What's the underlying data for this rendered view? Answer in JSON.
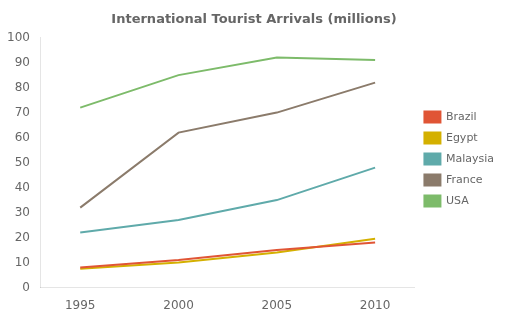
{
  "chart_data": {
    "type": "line",
    "title": "International Tourist Arrivals (millions)",
    "x": [
      1995,
      2000,
      2005,
      2010
    ],
    "series": [
      {
        "name": "Brazil",
        "color": "#e05535",
        "values": [
          8,
          11,
          15,
          18
        ]
      },
      {
        "name": "Egypt",
        "color": "#d4b000",
        "values": [
          7.5,
          10,
          14,
          19.5
        ]
      },
      {
        "name": "Malaysia",
        "color": "#5faaaa",
        "values": [
          22,
          27,
          35,
          48
        ]
      },
      {
        "name": "France",
        "color": "#8B7B6B",
        "values": [
          32,
          62,
          70,
          82
        ]
      },
      {
        "name": "USA",
        "color": "#7dbb6a",
        "values": [
          72,
          85,
          92,
          91
        ]
      }
    ],
    "xlim": [
      1993,
      2012
    ],
    "xticks": [
      1995,
      2000,
      2005,
      2010
    ],
    "ylim": [
      0,
      100
    ],
    "yticks": [
      0,
      10,
      20,
      30,
      40,
      50,
      60,
      70,
      80,
      90,
      100
    ],
    "grid": false,
    "legend": "right"
  }
}
